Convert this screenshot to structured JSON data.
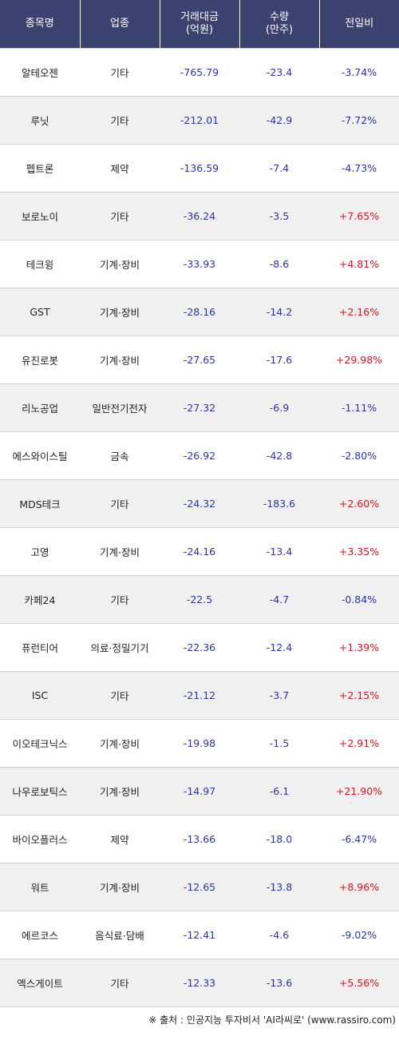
{
  "header": {
    "name": "종목명",
    "sector": "업종",
    "amount_line1": "거래대금",
    "amount_line2": "(억원)",
    "volume_line1": "수량",
    "volume_line2": "(만주)",
    "change": "전일비"
  },
  "rows": [
    {
      "name": "알테오젠",
      "sector": "기타",
      "amount": "-765.79",
      "volume": "-23.4",
      "change": "-3.74%",
      "dir": "neg"
    },
    {
      "name": "루닛",
      "sector": "기타",
      "amount": "-212.01",
      "volume": "-42.9",
      "change": "-7.72%",
      "dir": "neg"
    },
    {
      "name": "펩트론",
      "sector": "제약",
      "amount": "-136.59",
      "volume": "-7.4",
      "change": "-4.73%",
      "dir": "neg"
    },
    {
      "name": "보로노이",
      "sector": "기타",
      "amount": "-36.24",
      "volume": "-3.5",
      "change": "+7.65%",
      "dir": "pos"
    },
    {
      "name": "테크윙",
      "sector": "기계·장비",
      "amount": "-33.93",
      "volume": "-8.6",
      "change": "+4.81%",
      "dir": "pos"
    },
    {
      "name": "GST",
      "sector": "기계·장비",
      "amount": "-28.16",
      "volume": "-14.2",
      "change": "+2.16%",
      "dir": "pos"
    },
    {
      "name": "유진로봇",
      "sector": "기계·장비",
      "amount": "-27.65",
      "volume": "-17.6",
      "change": "+29.98%",
      "dir": "pos"
    },
    {
      "name": "리노공업",
      "sector": "일반전기전자",
      "amount": "-27.32",
      "volume": "-6.9",
      "change": "-1.11%",
      "dir": "neg"
    },
    {
      "name": "에스와이스틸",
      "sector": "금속",
      "amount": "-26.92",
      "volume": "-42.8",
      "change": "-2.80%",
      "dir": "neg"
    },
    {
      "name": "MDS테크",
      "sector": "기타",
      "amount": "-24.32",
      "volume": "-183.6",
      "change": "+2.60%",
      "dir": "pos"
    },
    {
      "name": "고영",
      "sector": "기계·장비",
      "amount": "-24.16",
      "volume": "-13.4",
      "change": "+3.35%",
      "dir": "pos"
    },
    {
      "name": "카페24",
      "sector": "기타",
      "amount": "-22.5",
      "volume": "-4.7",
      "change": "-0.84%",
      "dir": "neg"
    },
    {
      "name": "퓨런티어",
      "sector": "의료·정밀기기",
      "amount": "-22.36",
      "volume": "-12.4",
      "change": "+1.39%",
      "dir": "pos"
    },
    {
      "name": "ISC",
      "sector": "기타",
      "amount": "-21.12",
      "volume": "-3.7",
      "change": "+2.15%",
      "dir": "pos"
    },
    {
      "name": "이오테크닉스",
      "sector": "기계·장비",
      "amount": "-19.98",
      "volume": "-1.5",
      "change": "+2.91%",
      "dir": "pos"
    },
    {
      "name": "나우로보틱스",
      "sector": "기계·장비",
      "amount": "-14.97",
      "volume": "-6.1",
      "change": "+21.90%",
      "dir": "pos"
    },
    {
      "name": "바이오플러스",
      "sector": "제약",
      "amount": "-13.66",
      "volume": "-18.0",
      "change": "-6.47%",
      "dir": "neg"
    },
    {
      "name": "워트",
      "sector": "기계·장비",
      "amount": "-12.65",
      "volume": "-13.8",
      "change": "+8.96%",
      "dir": "pos"
    },
    {
      "name": "에르코스",
      "sector": "음식료·담배",
      "amount": "-12.41",
      "volume": "-4.6",
      "change": "-9.02%",
      "dir": "neg"
    },
    {
      "name": "엑스게이트",
      "sector": "기타",
      "amount": "-12.33",
      "volume": "-13.6",
      "change": "+5.56%",
      "dir": "pos"
    }
  ],
  "source": "※ 출처 : 인공지능 투자비서 'AI라씨로' (www.rassiro.com)",
  "colors": {
    "header_bg": "#3b4270",
    "negative": "#2a36a8",
    "positive": "#d8141c",
    "stripe": "#f0f0f0"
  }
}
